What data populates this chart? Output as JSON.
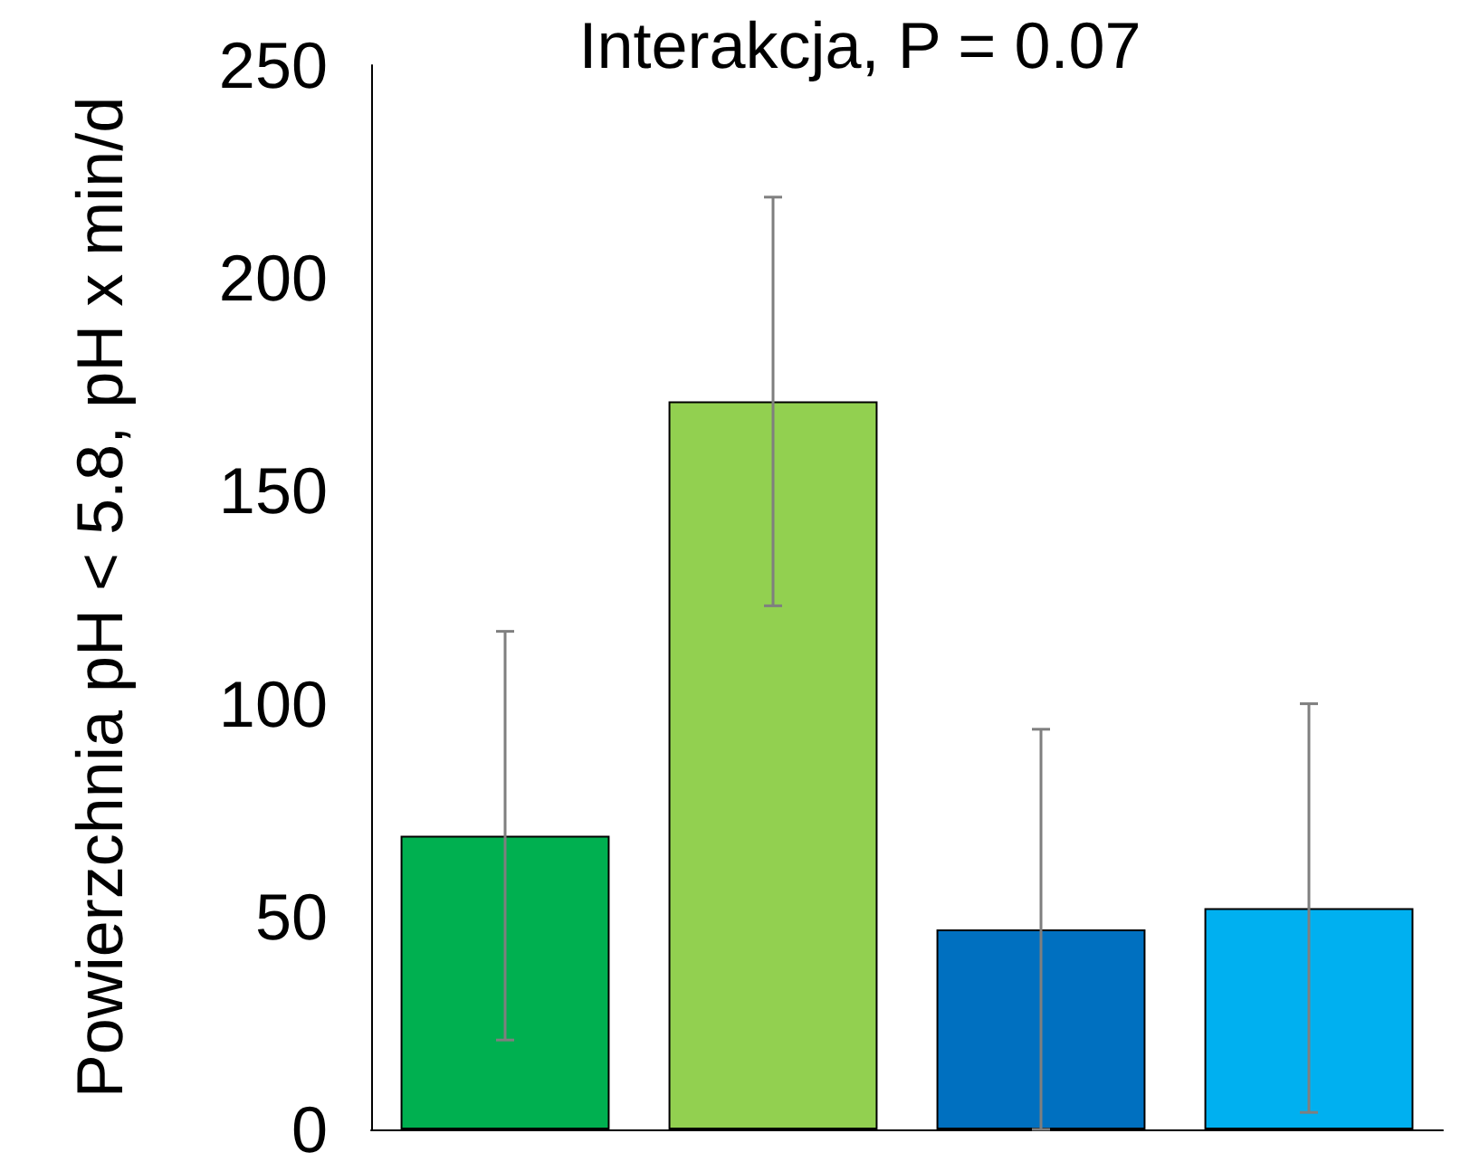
{
  "chart_data": {
    "type": "bar",
    "title": "Interakcja, P = 0.07",
    "ylabel": "Powierzchnia pH < 5.8, pH x min/d",
    "categories": [
      null,
      null,
      null,
      null
    ],
    "values": [
      69,
      171,
      47,
      52
    ],
    "colors": [
      "#00b050",
      "#92d050",
      "#0070c0",
      "#00b0f0"
    ],
    "errors": [
      48,
      48,
      47,
      48
    ],
    "ylim": [
      0,
      250
    ],
    "yticks": [
      0,
      50,
      100,
      150,
      200,
      250
    ],
    "grid": false
  }
}
